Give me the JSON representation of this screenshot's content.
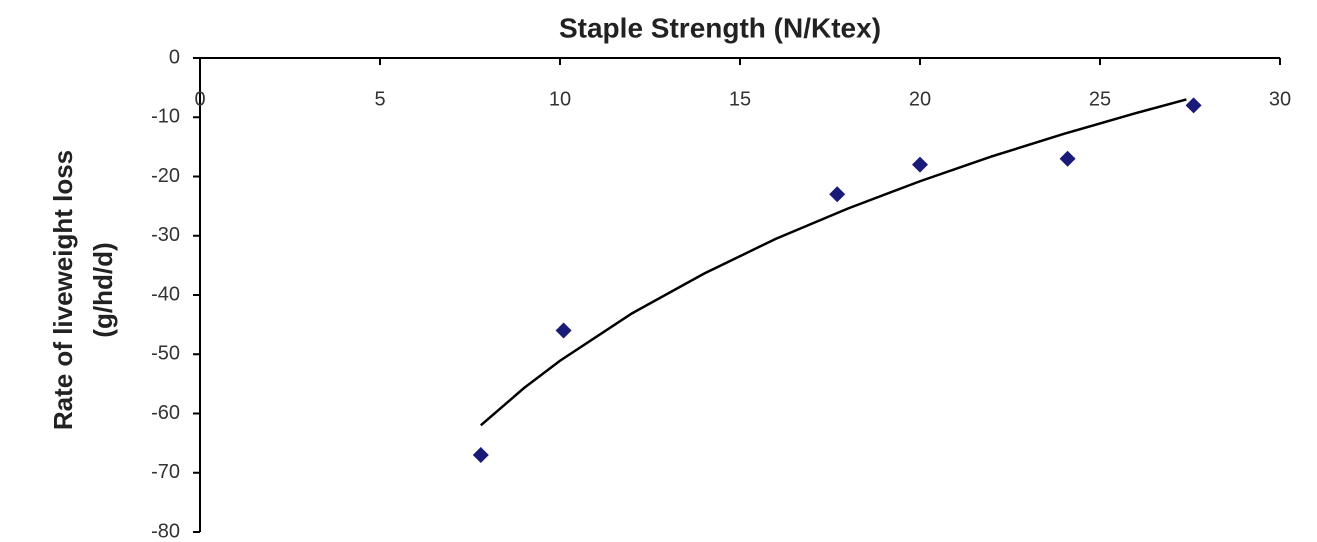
{
  "chart_data": {
    "type": "scatter",
    "title": "Staple Strength (N/Ktex)",
    "ylabel": [
      "Rate of liveweight loss",
      "(g/hd/d)"
    ],
    "x": [
      7.8,
      10.1,
      17.7,
      20,
      24.1,
      27.6
    ],
    "values": [
      -67,
      -46,
      -23,
      -18,
      -17,
      -8
    ],
    "color": "#1a1a78",
    "trendline": {
      "x": [
        7.8,
        9,
        10,
        12,
        14,
        16,
        18,
        20,
        22,
        24,
        26,
        27.4
      ],
      "values": [
        -62,
        -55.7,
        -51.1,
        -43.1,
        -36.4,
        -30.5,
        -25.4,
        -20.8,
        -16.6,
        -12.8,
        -9.3,
        -7
      ],
      "color": "#000000"
    },
    "xlim": [
      0,
      30
    ],
    "xticks": [
      0,
      5,
      10,
      15,
      20,
      25,
      30
    ],
    "ylim": [
      -80,
      0
    ],
    "yticks": [
      0,
      -10,
      -20,
      -30,
      -40,
      -50,
      -60,
      -70,
      -80
    ]
  }
}
